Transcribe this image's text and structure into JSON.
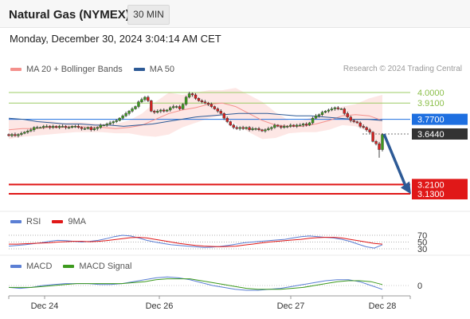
{
  "header": {
    "title": "Natural Gas (NYMEX)",
    "interval": "30 MIN"
  },
  "datetime": "Monday, December 30, 2024 3:04:14 AM CET",
  "legend_main": [
    {
      "label": "MA 20 + Bollinger Bands",
      "color": "#f4908c"
    },
    {
      "label": "MA 50",
      "color": "#2d5a96"
    }
  ],
  "credit": "Research © 2024 Trading Central",
  "legend_rsi": [
    {
      "label": "RSI",
      "color": "#5b7fd4"
    },
    {
      "label": "9MA",
      "color": "#e01818"
    }
  ],
  "legend_macd": [
    {
      "label": "MACD",
      "color": "#5b7fd4"
    },
    {
      "label": "MACD Signal",
      "color": "#3d9a1e"
    }
  ],
  "chart_data": {
    "type": "candlestick",
    "x_ticks": [
      "Dec 24",
      "Dec 26",
      "Dec 27",
      "Dec 28"
    ],
    "y_range": [
      3.0,
      4.11
    ],
    "levels": [
      {
        "value": 4.0,
        "label": "4.0000",
        "kind": "resistance",
        "color": "#9ccc65"
      },
      {
        "value": 3.91,
        "label": "3.9100",
        "kind": "resistance",
        "color": "#9ccc65"
      },
      {
        "value": 3.77,
        "label": "3.7700",
        "kind": "pivot",
        "color": "#1e6fe0"
      },
      {
        "value": 3.644,
        "label": "3.6440",
        "kind": "last",
        "color": "#333333"
      },
      {
        "value": 3.21,
        "label": "3.2100",
        "kind": "support",
        "color": "#e01818"
      },
      {
        "value": 3.13,
        "label": "3.1300",
        "kind": "support",
        "color": "#e01818"
      }
    ],
    "forecast_arrow": {
      "from": 3.644,
      "to": 3.21,
      "color": "#2d5a96"
    },
    "price_path": [
      3.63,
      3.64,
      3.63,
      3.64,
      3.65,
      3.66,
      3.67,
      3.68,
      3.7,
      3.7,
      3.7,
      3.71,
      3.71,
      3.7,
      3.71,
      3.7,
      3.71,
      3.71,
      3.7,
      3.7,
      3.71,
      3.71,
      3.7,
      3.69,
      3.69,
      3.7,
      3.68,
      3.69,
      3.7,
      3.72,
      3.72,
      3.73,
      3.74,
      3.75,
      3.76,
      3.78,
      3.8,
      3.82,
      3.84,
      3.86,
      3.88,
      3.92,
      3.94,
      3.96,
      3.93,
      3.84,
      3.83,
      3.84,
      3.85,
      3.84,
      3.85,
      3.87,
      3.88,
      3.88,
      3.86,
      3.9,
      3.96,
      3.99,
      3.98,
      3.95,
      3.93,
      3.92,
      3.91,
      3.9,
      3.88,
      3.86,
      3.84,
      3.82,
      3.78,
      3.75,
      3.72,
      3.7,
      3.69,
      3.7,
      3.69,
      3.7,
      3.68,
      3.69,
      3.69,
      3.68,
      3.67,
      3.68,
      3.69,
      3.7,
      3.72,
      3.71,
      3.7,
      3.71,
      3.71,
      3.72,
      3.71,
      3.72,
      3.72,
      3.73,
      3.72,
      3.74,
      3.78,
      3.8,
      3.81,
      3.83,
      3.84,
      3.85,
      3.86,
      3.87,
      3.86,
      3.86,
      3.82,
      3.79,
      3.76,
      3.75,
      3.74,
      3.71,
      3.7,
      3.68,
      3.66,
      3.58,
      3.56,
      3.51,
      3.64
    ],
    "ma50_path": [
      3.78,
      3.77,
      3.75,
      3.74,
      3.73,
      3.73,
      3.72,
      3.72,
      3.71,
      3.72,
      3.73,
      3.75,
      3.77,
      3.79,
      3.8,
      3.81,
      3.82,
      3.82,
      3.82,
      3.81,
      3.8,
      3.8,
      3.79,
      3.78,
      3.77,
      3.77,
      3.76
    ],
    "ma20_path": [
      3.68,
      3.69,
      3.69,
      3.7,
      3.7,
      3.71,
      3.7,
      3.7,
      3.69,
      3.7,
      3.72,
      3.77,
      3.82,
      3.85,
      3.87,
      3.9,
      3.91,
      3.88,
      3.82,
      3.76,
      3.72,
      3.71,
      3.71,
      3.73,
      3.76,
      3.8,
      3.81,
      3.8,
      3.76
    ],
    "bb_upper_path": [
      3.78,
      3.76,
      3.76,
      3.76,
      3.74,
      3.75,
      3.74,
      3.73,
      3.73,
      3.76,
      3.82,
      3.92,
      4.0,
      3.98,
      4.0,
      4.02,
      4.02,
      4.04,
      3.98,
      3.92,
      3.83,
      3.76,
      3.76,
      3.8,
      3.84,
      3.88,
      3.9,
      3.95,
      3.98
    ],
    "bb_lower_path": [
      3.6,
      3.62,
      3.63,
      3.64,
      3.65,
      3.66,
      3.66,
      3.66,
      3.65,
      3.65,
      3.63,
      3.62,
      3.64,
      3.7,
      3.74,
      3.78,
      3.8,
      3.73,
      3.66,
      3.6,
      3.61,
      3.65,
      3.66,
      3.66,
      3.68,
      3.72,
      3.71,
      3.66,
      3.52
    ],
    "rsi": {
      "ticks": [
        "70",
        "50",
        "30"
      ],
      "rsi_path": [
        38,
        40,
        42,
        45,
        48,
        52,
        55,
        54,
        52,
        50,
        52,
        55,
        60,
        66,
        70,
        68,
        62,
        55,
        50,
        46,
        42,
        40,
        38,
        36,
        34,
        35,
        37,
        40,
        44,
        48,
        50,
        52,
        54,
        56,
        58,
        62,
        66,
        68,
        66,
        64,
        62,
        58,
        52,
        44,
        36,
        32,
        42
      ],
      "ma9_path": [
        44,
        44,
        45,
        46,
        47,
        48,
        50,
        51,
        52,
        52,
        51,
        52,
        54,
        57,
        60,
        63,
        64,
        62,
        58,
        54,
        50,
        46,
        43,
        40,
        38,
        37,
        36,
        37,
        38,
        41,
        44,
        47,
        50,
        52,
        54,
        56,
        58,
        61,
        63,
        64,
        64,
        62,
        58,
        54,
        50,
        46,
        44
      ]
    },
    "macd": {
      "ticks": [
        "0"
      ],
      "macd_path": [
        -0.02,
        -0.03,
        -0.02,
        0.0,
        0.01,
        0.02,
        0.02,
        0.02,
        0.01,
        0.01,
        0.02,
        0.04,
        0.06,
        0.08,
        0.09,
        0.08,
        0.06,
        0.03,
        0.0,
        -0.02,
        -0.04,
        -0.05,
        -0.05,
        -0.04,
        -0.03,
        -0.01,
        0.01,
        0.03,
        0.05,
        0.06,
        0.06,
        0.04,
        0.0,
        -0.04
      ],
      "signal_path": [
        -0.02,
        -0.02,
        -0.02,
        -0.01,
        0.0,
        0.01,
        0.02,
        0.02,
        0.02,
        0.02,
        0.02,
        0.03,
        0.04,
        0.06,
        0.07,
        0.07,
        0.07,
        0.05,
        0.03,
        0.01,
        -0.01,
        -0.03,
        -0.04,
        -0.04,
        -0.04,
        -0.03,
        -0.02,
        0.0,
        0.02,
        0.04,
        0.05,
        0.05,
        0.04,
        0.01
      ]
    }
  }
}
